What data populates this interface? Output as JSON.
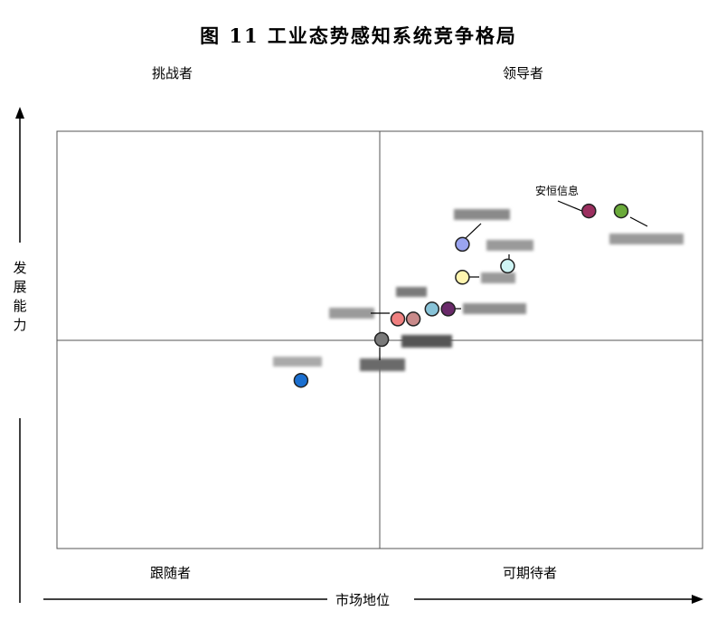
{
  "title": "图 11   工业态势感知系统竞争格局",
  "quadrants": {
    "top_left": "挑战者",
    "top_right": "领导者",
    "bottom_left": "跟随者",
    "bottom_right": "可期待者"
  },
  "axes": {
    "x_label": "市场地位",
    "y_label": "发展能力"
  },
  "chart_data": {
    "type": "scatter",
    "title": "图 11   工业态势感知系统竞争格局",
    "xlabel": "市场地位",
    "ylabel": "发展能力",
    "xlim": [
      0,
      100
    ],
    "ylim": [
      0,
      100
    ],
    "grid": false,
    "points": [
      {
        "label": "安恒信息",
        "x": 82.4,
        "y": 80.9,
        "color": "#9b2f5f"
      },
      {
        "label": "",
        "x": 87.4,
        "y": 80.9,
        "color": "#6aaa3a"
      },
      {
        "label": "",
        "x": 62.8,
        "y": 72.9,
        "color": "#9aa4f0"
      },
      {
        "label": "",
        "x": 69.8,
        "y": 67.7,
        "color": "#cff5f5"
      },
      {
        "label": "",
        "x": 62.8,
        "y": 65.0,
        "color": "#fff5b0"
      },
      {
        "label": "",
        "x": 58.1,
        "y": 57.4,
        "color": "#88c3d8"
      },
      {
        "label": "",
        "x": 60.6,
        "y": 57.4,
        "color": "#6a2a6a"
      },
      {
        "label": "",
        "x": 52.8,
        "y": 55.0,
        "color": "#f08080"
      },
      {
        "label": "",
        "x": 55.2,
        "y": 55.0,
        "color": "#c98a8a"
      },
      {
        "label": "",
        "x": 50.3,
        "y": 50.1,
        "color": "#7a7a7a"
      },
      {
        "label": "",
        "x": 37.8,
        "y": 40.3,
        "color": "#1a6fd0"
      }
    ]
  }
}
